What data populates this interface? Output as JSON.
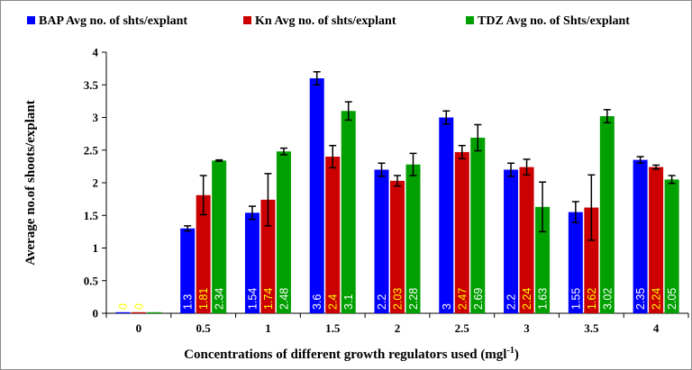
{
  "chart_data": {
    "type": "bar",
    "title": "",
    "xlabel": "Concentrations of different growth regulators used (mgl",
    "xlabel_sup": "-1",
    "xlabel_suffix": ")",
    "ylabel": "Average no.of shoots/explant",
    "ylim": [
      0,
      4
    ],
    "yticks": [
      "0",
      "0.5",
      "1",
      "1.5",
      "2",
      "2.5",
      "3",
      "3.5",
      "4"
    ],
    "grid": false,
    "legend_position": "top",
    "categories": [
      "0",
      "0.5",
      "1",
      "1.5",
      "2",
      "2.5",
      "3",
      "3.5",
      "4"
    ],
    "series": [
      {
        "name": "BAP Avg no. of shts/explant",
        "color": "#0000ff",
        "values": [
          0,
          1.3,
          1.54,
          3.6,
          2.2,
          3,
          2.2,
          1.55,
          2.35
        ],
        "labels": [
          "0",
          "1.3",
          "1.54",
          "3.6",
          "2.2",
          "3",
          "2.2",
          "1.55",
          "2.35"
        ],
        "errors": [
          0,
          0.04,
          0.1,
          0.1,
          0.1,
          0.1,
          0.1,
          0.16,
          0.05
        ],
        "label_colors": [
          "#ffff00",
          "#ffffff",
          "#ffffff",
          "#ffffff",
          "#ffffff",
          "#ffffff",
          "#ffffff",
          "#ffffff",
          "#ffffff"
        ]
      },
      {
        "name": "Kn Avg no. of shts/explant",
        "color": "#cc0000",
        "values": [
          0,
          1.81,
          1.74,
          2.4,
          2.03,
          2.47,
          2.24,
          1.62,
          2.24
        ],
        "labels": [
          "0",
          "1.81",
          "1.74",
          "2.4",
          "2.03",
          "2.47",
          "2.24",
          "1.62",
          "2.24"
        ],
        "errors": [
          0,
          0.3,
          0.4,
          0.17,
          0.08,
          0.1,
          0.12,
          0.5,
          0.03
        ],
        "label_colors": [
          "#ffff00",
          "#ffff00",
          "#ffff00",
          "#ffff00",
          "#ffff00",
          "#ffff00",
          "#ffff00",
          "#ffff00",
          "#ffff00"
        ]
      },
      {
        "name": "TDZ Avg no. of Shts/explant",
        "color": "#00a000",
        "values": [
          0,
          2.34,
          2.48,
          3.1,
          2.28,
          2.69,
          1.63,
          3.02,
          2.05
        ],
        "labels": [
          "",
          "2.34",
          "2.48",
          "3.1",
          "2.28",
          "2.69",
          "1.63",
          "3.02",
          "2.05"
        ],
        "errors": [
          0,
          0.01,
          0.05,
          0.14,
          0.17,
          0.2,
          0.38,
          0.1,
          0.06
        ],
        "label_colors": [
          "#ffffff",
          "#ffffff",
          "#ffffff",
          "#ffffff",
          "#ffffff",
          "#ffffff",
          "#ffffff",
          "#ffffff",
          "#ffffff"
        ]
      }
    ]
  }
}
